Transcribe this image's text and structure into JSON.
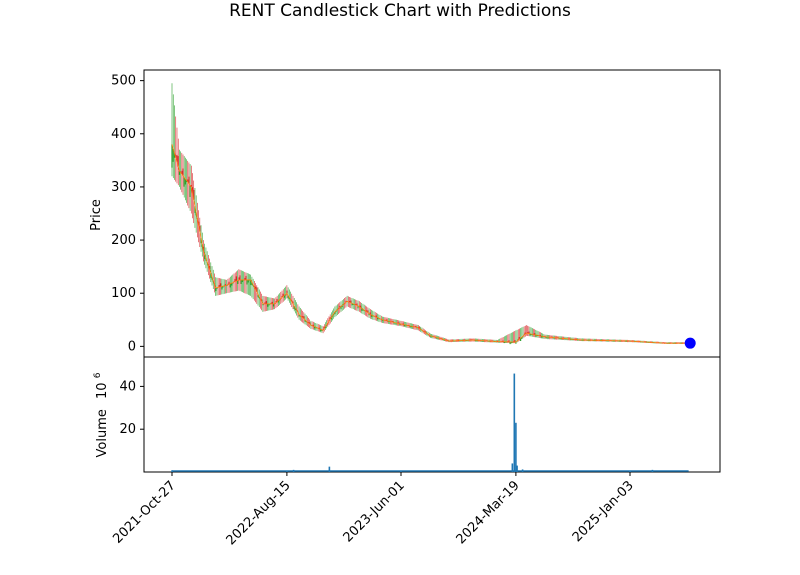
{
  "chart_data": {
    "type": "candlestick",
    "title": "RENT Candlestick Chart with Predictions",
    "colors": {
      "up": "#2ca02c",
      "down": "#d62728",
      "prediction_line": "#ff7f0e",
      "prediction_marker": "#0000ff",
      "volume": "#1f77b4"
    },
    "price_panel": {
      "ylabel": "Price",
      "ylim": [
        -20,
        520
      ],
      "yticks": [
        0,
        100,
        200,
        300,
        400,
        500
      ],
      "series_approx": [
        {
          "date": "2021-10-27",
          "close": 380,
          "high": 495,
          "low": 320
        },
        {
          "date": "2021-11-15",
          "close": 330,
          "high": 370,
          "low": 300
        },
        {
          "date": "2021-12-15",
          "close": 300,
          "high": 340,
          "low": 250
        },
        {
          "date": "2022-01-15",
          "close": 180,
          "high": 200,
          "low": 160
        },
        {
          "date": "2022-02-15",
          "close": 110,
          "high": 130,
          "low": 95
        },
        {
          "date": "2022-03-15",
          "close": 115,
          "high": 125,
          "low": 100
        },
        {
          "date": "2022-04-15",
          "close": 125,
          "high": 145,
          "low": 105
        },
        {
          "date": "2022-05-15",
          "close": 125,
          "high": 135,
          "low": 95
        },
        {
          "date": "2022-06-15",
          "close": 80,
          "high": 95,
          "low": 65
        },
        {
          "date": "2022-07-15",
          "close": 80,
          "high": 90,
          "low": 70
        },
        {
          "date": "2022-08-15",
          "close": 100,
          "high": 115,
          "low": 90
        },
        {
          "date": "2022-09-15",
          "close": 60,
          "high": 75,
          "low": 50
        },
        {
          "date": "2022-10-15",
          "close": 40,
          "high": 48,
          "low": 33
        },
        {
          "date": "2022-11-15",
          "close": 30,
          "high": 38,
          "low": 25
        },
        {
          "date": "2022-12-15",
          "close": 65,
          "high": 75,
          "low": 55
        },
        {
          "date": "2023-01-15",
          "close": 85,
          "high": 95,
          "low": 75
        },
        {
          "date": "2023-02-15",
          "close": 75,
          "high": 85,
          "low": 65
        },
        {
          "date": "2023-03-15",
          "close": 60,
          "high": 70,
          "low": 52
        },
        {
          "date": "2023-04-15",
          "close": 50,
          "high": 56,
          "low": 44
        },
        {
          "date": "2023-06-01",
          "close": 42,
          "high": 48,
          "low": 38
        },
        {
          "date": "2023-07-15",
          "close": 35,
          "high": 40,
          "low": 30
        },
        {
          "date": "2023-08-15",
          "close": 20,
          "high": 24,
          "low": 16
        },
        {
          "date": "2023-10-01",
          "close": 10,
          "high": 13,
          "low": 8
        },
        {
          "date": "2023-12-01",
          "close": 12,
          "high": 15,
          "low": 9
        },
        {
          "date": "2024-02-01",
          "close": 9,
          "high": 12,
          "low": 7
        },
        {
          "date": "2024-03-19",
          "close": 8,
          "high": 30,
          "low": 6
        },
        {
          "date": "2024-04-15",
          "close": 25,
          "high": 40,
          "low": 20
        },
        {
          "date": "2024-06-01",
          "close": 18,
          "high": 22,
          "low": 14
        },
        {
          "date": "2024-09-01",
          "close": 12,
          "high": 15,
          "low": 10
        },
        {
          "date": "2025-01-03",
          "close": 10,
          "high": 12,
          "low": 8
        },
        {
          "date": "2025-04-01",
          "close": 6,
          "high": 8,
          "low": 5
        },
        {
          "date": "2025-06-01",
          "close": 6,
          "high": 8,
          "low": 5
        }
      ],
      "predictions": [
        {
          "date": "2025-06-05",
          "value": 6
        }
      ]
    },
    "volume_panel": {
      "ylabel": "Volume",
      "ylabel_exponent": "10",
      "ylabel_exponent_power": "6",
      "ylim": [
        0,
        50
      ],
      "yticks": [
        20,
        40
      ],
      "series_approx": [
        {
          "date": "2021-10-27",
          "value": 0.8
        },
        {
          "date": "2022-08-15",
          "value": 0.6
        },
        {
          "date": "2022-09-01",
          "value": 1.0
        },
        {
          "date": "2022-12-01",
          "value": 2.5
        },
        {
          "date": "2023-06-01",
          "value": 0.5
        },
        {
          "date": "2024-03-10",
          "value": 4
        },
        {
          "date": "2024-03-15",
          "value": 46
        },
        {
          "date": "2024-03-19",
          "value": 23
        },
        {
          "date": "2024-03-22",
          "value": 3
        },
        {
          "date": "2024-04-05",
          "value": 1.2
        },
        {
          "date": "2025-01-03",
          "value": 0.5
        },
        {
          "date": "2025-03-01",
          "value": 1.0
        }
      ]
    },
    "x_axis": {
      "date_range": [
        "2021-10-01",
        "2025-07-01"
      ],
      "ticks": [
        "2021-Oct-27",
        "2022-Aug-15",
        "2023-Jun-01",
        "2024-Mar-19",
        "2025-Jan-03"
      ]
    }
  }
}
